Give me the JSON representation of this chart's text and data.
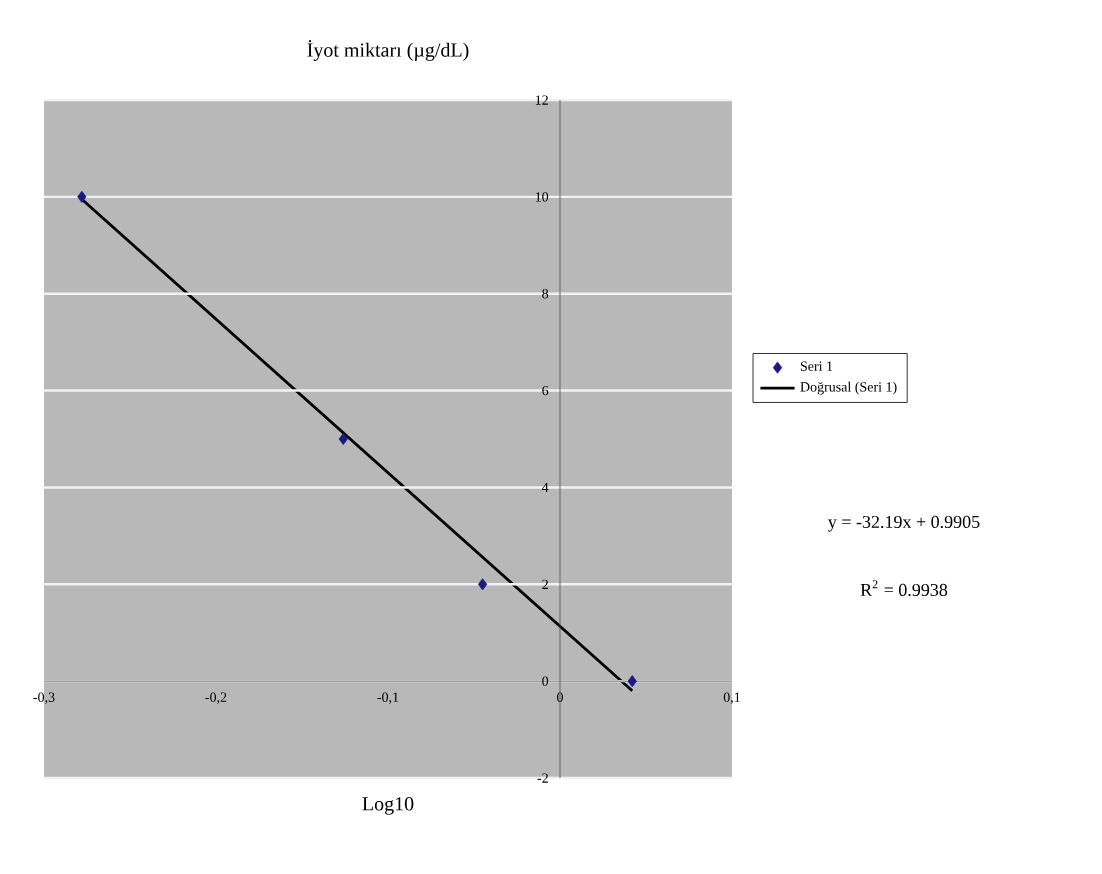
{
  "chart_data": {
    "type": "scatter",
    "title": "İyot miktarı (µg/dL)",
    "xlabel": "Log10",
    "xlim": [
      -0.3,
      0.1
    ],
    "xticks": [
      {
        "value": -0.3,
        "label": "-0,3"
      },
      {
        "value": -0.2,
        "label": "-0,2"
      },
      {
        "value": -0.1,
        "label": "-0,1"
      },
      0,
      {
        "value": 0.1,
        "label": "0,1"
      }
    ],
    "ylim": [
      -2,
      12
    ],
    "yticks": [
      -2,
      0,
      2,
      4,
      6,
      8,
      10,
      12
    ],
    "grid": "y",
    "legend": "right",
    "series": [
      {
        "name": "Seri 1",
        "type": "scatter",
        "marker": "diamond",
        "color": "#1a1a80",
        "x": [
          -0.278,
          -0.126,
          -0.045,
          0.042
        ],
        "values": [
          10,
          5,
          2,
          0
        ]
      },
      {
        "name": "Doğrusal (Seri 1)",
        "type": "line",
        "color": "#000000",
        "x": [
          -0.278,
          0.042
        ],
        "values": [
          9.95,
          -0.2
        ]
      }
    ],
    "annotations": [
      "y = -32.19x + 0.9905",
      "R$^{2}$ = 0.9938"
    ]
  }
}
